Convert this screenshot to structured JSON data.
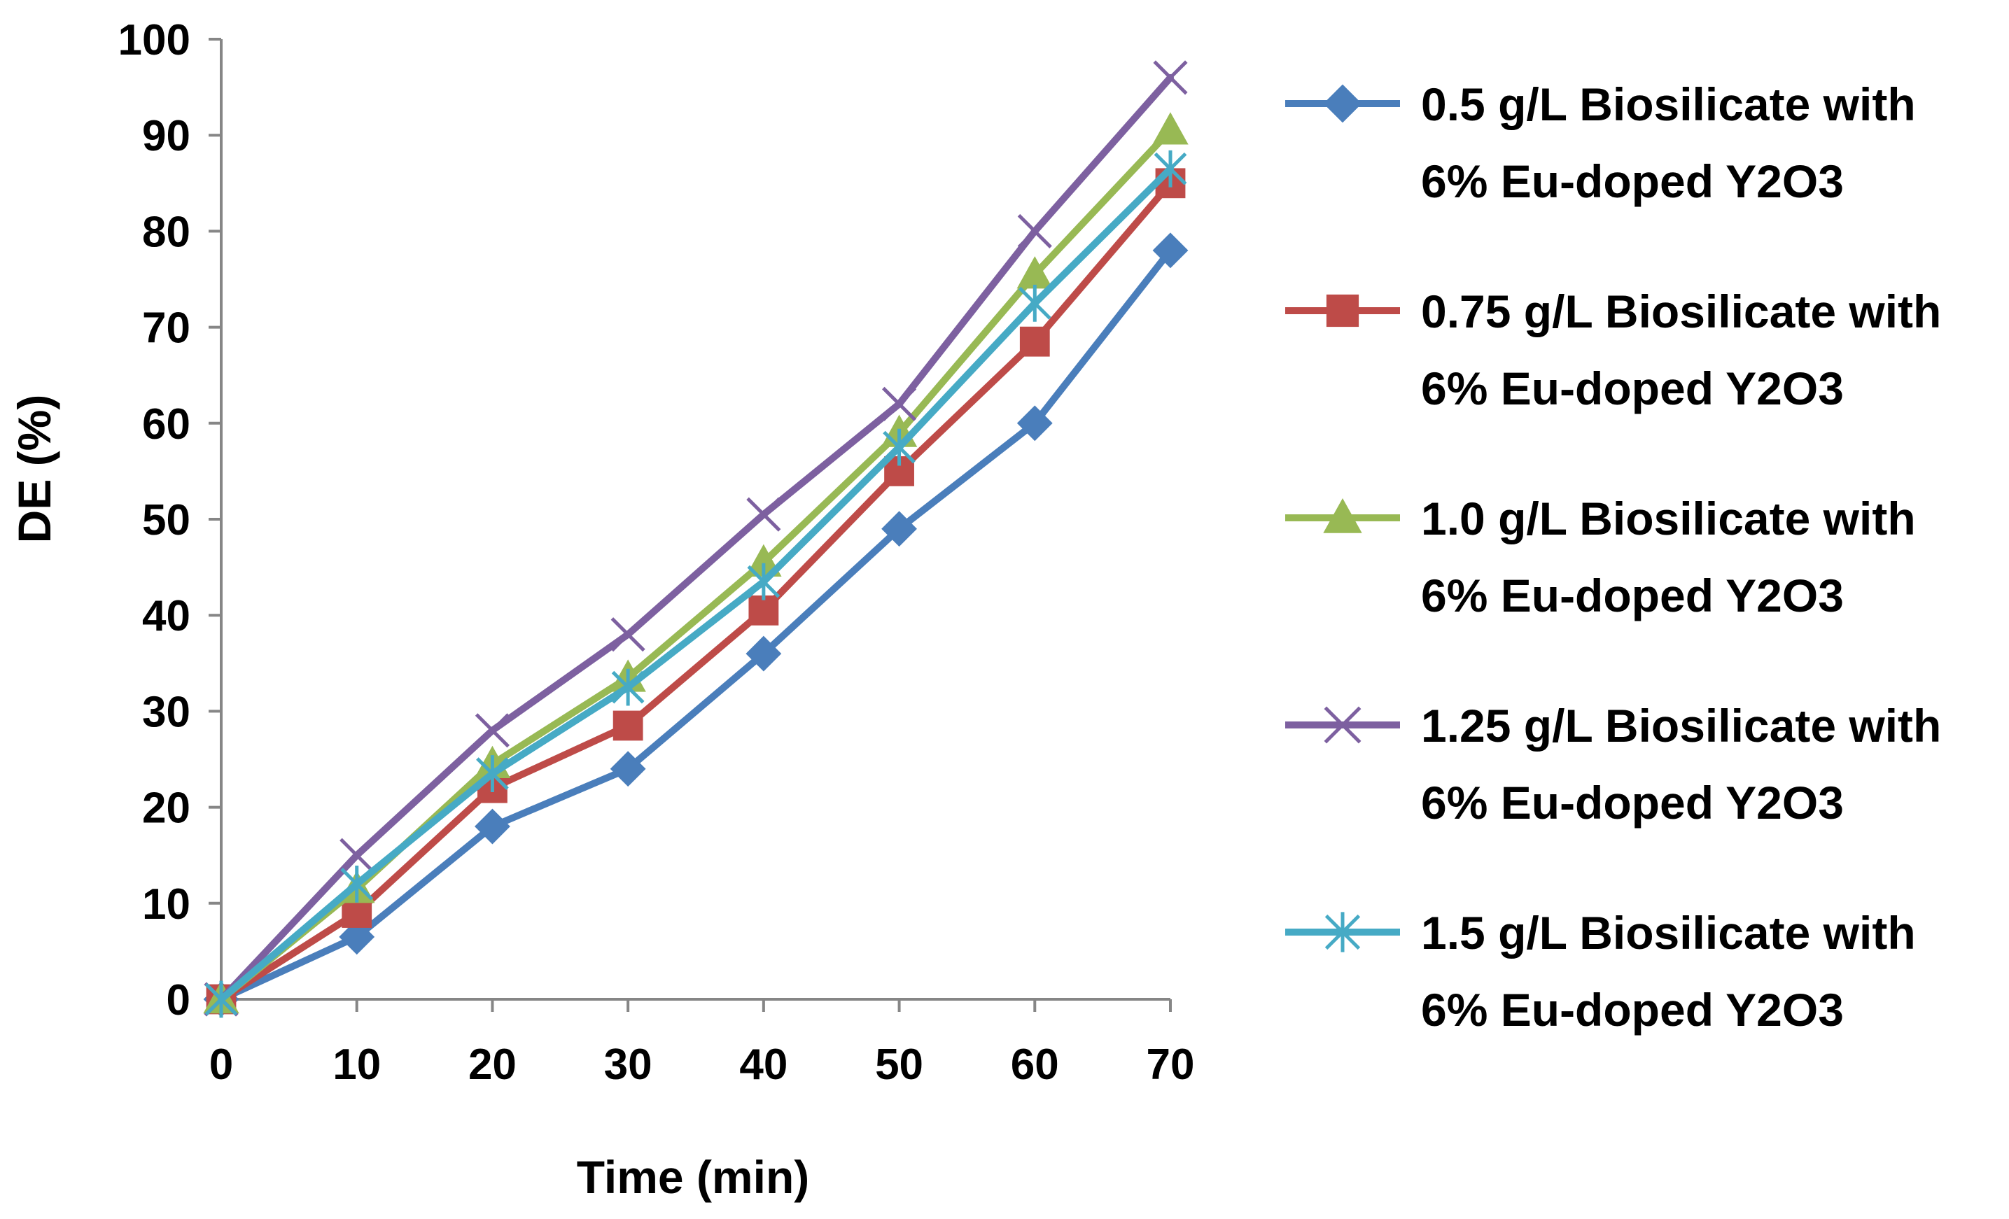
{
  "chart_data": {
    "type": "line",
    "title": "",
    "xlabel": "Time (min)",
    "ylabel": "DE (%)",
    "x": [
      0,
      10,
      20,
      30,
      40,
      50,
      60,
      70
    ],
    "xlim": [
      0,
      70
    ],
    "ylim": [
      0,
      100
    ],
    "yticks": [
      0,
      10,
      20,
      30,
      40,
      50,
      60,
      70,
      80,
      90,
      100
    ],
    "xticks": [
      0,
      10,
      20,
      30,
      40,
      50,
      60,
      70
    ],
    "grid": false,
    "legend_position": "right",
    "series": [
      {
        "name": "0.5 g/L Biosilicate with 6% Eu-doped Y2O3",
        "legend_lines": [
          "0.5 g/L Biosilicate with",
          "6% Eu-doped Y2O3"
        ],
        "marker": "diamond",
        "color": "#4A7EBB",
        "values": [
          0,
          6.5,
          18,
          24,
          36,
          49,
          60,
          78
        ]
      },
      {
        "name": "0.75 g/L Biosilicate with 6% Eu-doped Y2O3",
        "legend_lines": [
          "0.75 g/L Biosilicate with",
          "6% Eu-doped Y2O3"
        ],
        "marker": "square",
        "color": "#BE4B48",
        "values": [
          0,
          9,
          22,
          28.5,
          40.5,
          55,
          68.5,
          85
        ]
      },
      {
        "name": "1.0 g/L Biosilicate with 6% Eu-doped Y2O3",
        "legend_lines": [
          "1.0 g/L Biosilicate with",
          "6% Eu-doped Y2O3"
        ],
        "marker": "triangle",
        "color": "#98B954",
        "values": [
          0,
          11.5,
          24.5,
          33.5,
          45.5,
          59,
          75.5,
          90.5
        ]
      },
      {
        "name": "1.25 g/L Biosilicate with 6% Eu-doped Y2O3",
        "legend_lines": [
          "1.25 g/L Biosilicate with",
          "6% Eu-doped Y2O3"
        ],
        "marker": "x",
        "color": "#7D60A0",
        "values": [
          0,
          15,
          28,
          38,
          50.5,
          62,
          80,
          96
        ]
      },
      {
        "name": "1.5 g/L Biosilicate with 6% Eu-doped Y2O3",
        "legend_lines": [
          "1.5 g/L Biosilicate with",
          "6% Eu-doped Y2O3"
        ],
        "marker": "star",
        "color": "#46AAC5",
        "values": [
          0,
          12,
          23.5,
          32.5,
          43.5,
          57.5,
          72.5,
          86.5
        ]
      }
    ]
  }
}
